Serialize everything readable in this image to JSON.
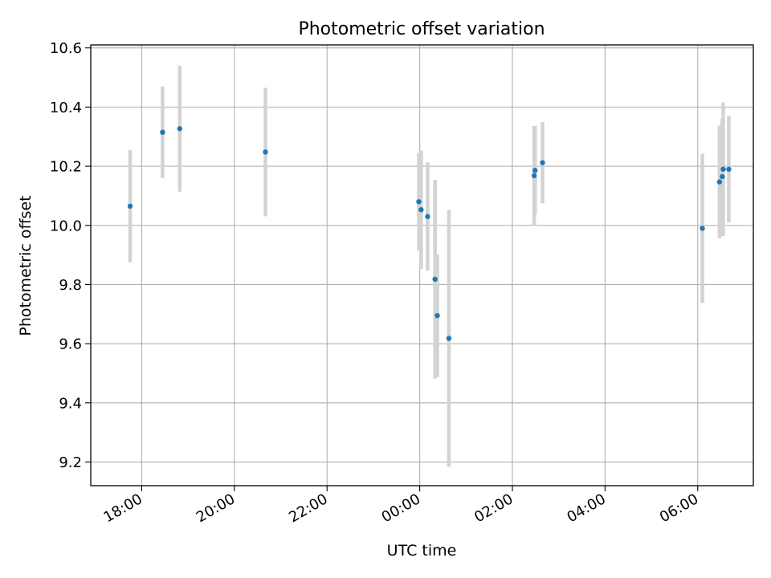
{
  "chart_data": {
    "type": "scatter",
    "title": "Photometric offset variation",
    "xlabel": "UTC time",
    "ylabel": "Photometric offset",
    "x_unit": "UTC hour (continuous, >24 = next day)",
    "xlim": [
      16.9,
      31.2
    ],
    "ylim": [
      9.12,
      10.61
    ],
    "x_ticks": [
      {
        "value": 18,
        "label": "18:00"
      },
      {
        "value": 20,
        "label": "20:00"
      },
      {
        "value": 22,
        "label": "22:00"
      },
      {
        "value": 24,
        "label": "00:00"
      },
      {
        "value": 26,
        "label": "02:00"
      },
      {
        "value": 28,
        "label": "04:00"
      },
      {
        "value": 30,
        "label": "06:00"
      }
    ],
    "y_ticks": [
      {
        "value": 9.2,
        "label": "9.2"
      },
      {
        "value": 9.4,
        "label": "9.4"
      },
      {
        "value": 9.6,
        "label": "9.6"
      },
      {
        "value": 9.8,
        "label": "9.8"
      },
      {
        "value": 10.0,
        "label": "10.0"
      },
      {
        "value": 10.2,
        "label": "10.2"
      },
      {
        "value": 10.4,
        "label": "10.4"
      },
      {
        "value": 10.6,
        "label": "10.6"
      }
    ],
    "grid": true,
    "point_color": "#1f77b4",
    "errorbar_color": "#d3d3d3",
    "series": [
      {
        "points": [
          {
            "x": 17.75,
            "y": 10.065,
            "yerr": 0.19
          },
          {
            "x": 18.45,
            "y": 10.315,
            "yerr": 0.155
          },
          {
            "x": 18.82,
            "y": 10.327,
            "yerr": 0.213
          },
          {
            "x": 20.67,
            "y": 10.248,
            "yerr": 0.217
          },
          {
            "x": 23.98,
            "y": 10.08,
            "yerr": 0.165
          },
          {
            "x": 24.03,
            "y": 10.053,
            "yerr": 0.2
          },
          {
            "x": 24.17,
            "y": 10.03,
            "yerr": 0.183
          },
          {
            "x": 24.33,
            "y": 9.818,
            "yerr": 0.336
          },
          {
            "x": 24.38,
            "y": 9.695,
            "yerr": 0.207
          },
          {
            "x": 24.63,
            "y": 9.618,
            "yerr": 0.434
          },
          {
            "x": 26.47,
            "y": 10.168,
            "yerr": 0.168
          },
          {
            "x": 26.49,
            "y": 10.186,
            "yerr": 0.15
          },
          {
            "x": 26.65,
            "y": 10.212,
            "yerr": 0.137
          },
          {
            "x": 30.1,
            "y": 9.99,
            "yerr": 0.252
          },
          {
            "x": 30.47,
            "y": 10.147,
            "yerr": 0.19
          },
          {
            "x": 30.53,
            "y": 10.165,
            "yerr": 0.197
          },
          {
            "x": 30.55,
            "y": 10.19,
            "yerr": 0.226
          },
          {
            "x": 30.67,
            "y": 10.19,
            "yerr": 0.18
          }
        ]
      }
    ]
  }
}
